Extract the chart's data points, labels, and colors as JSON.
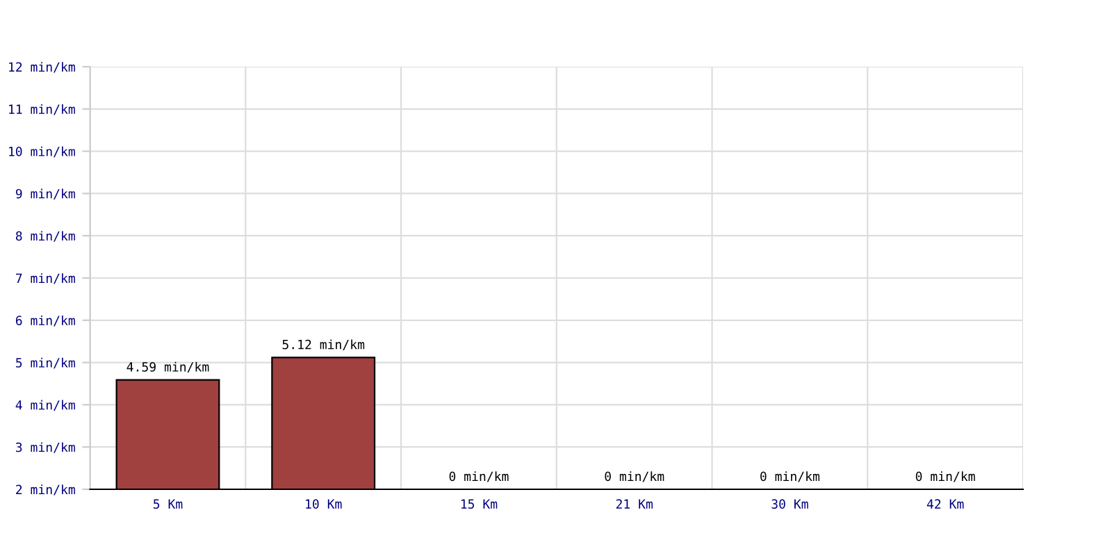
{
  "chart_data": {
    "type": "bar",
    "categories": [
      "5 Km",
      "10 Km",
      "15 Km",
      "21 Km",
      "30 Km",
      "42 Km"
    ],
    "values": [
      4.59,
      5.12,
      null,
      null,
      null,
      null
    ],
    "value_labels": [
      "4.59 min/km",
      "5.12 min/km",
      "0 min/km",
      "0 min/km",
      "0 min/km",
      "0 min/km"
    ],
    "color": "#a0403f",
    "ylim": [
      2,
      12
    ],
    "yticks": [
      {
        "value": 2,
        "label": "2 min/km"
      },
      {
        "value": 3,
        "label": "3 min/km"
      },
      {
        "value": 4,
        "label": "4 min/km"
      },
      {
        "value": 5,
        "label": "5 min/km"
      },
      {
        "value": 6,
        "label": "6 min/km"
      },
      {
        "value": 7,
        "label": "7 min/km"
      },
      {
        "value": 8,
        "label": "8 min/km"
      },
      {
        "value": 9,
        "label": "9 min/km"
      },
      {
        "value": 10,
        "label": "10 min/km"
      },
      {
        "value": 11,
        "label": "11 min/km"
      },
      {
        "value": 12,
        "label": "12 min/km"
      }
    ],
    "grid": true
  }
}
